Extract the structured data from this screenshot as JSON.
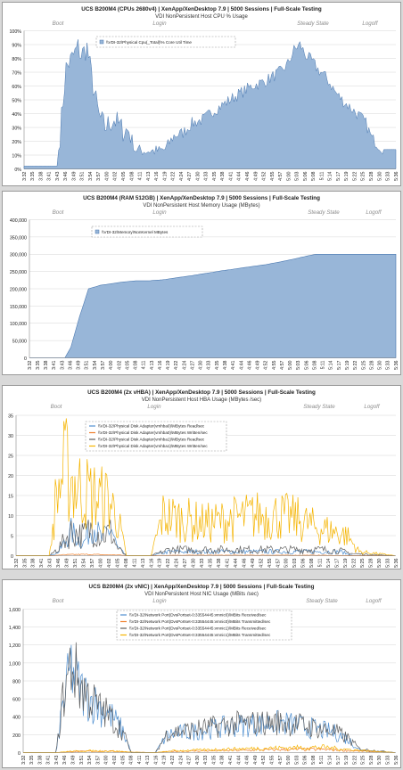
{
  "colors": {
    "area_fill": "#98b6d8",
    "area_stroke": "#4a78b0",
    "grid": "#d6d6d6",
    "blue": "#4f8fd0",
    "orange": "#ef7f2a",
    "gray": "#5f5f5f",
    "gold": "#f5b400"
  },
  "x_ticks": [
    "3:32",
    "3:35",
    "3:38",
    "3:41",
    "3:43",
    "3:46",
    "3:49",
    "3:51",
    "3:54",
    "3:57",
    "4:00",
    "4:02",
    "4:05",
    "4:08",
    "4:11",
    "4:13",
    "4:16",
    "4:19",
    "4:22",
    "4:24",
    "4:27",
    "4:30",
    "4:33",
    "4:35",
    "4:38",
    "4:41",
    "4:44",
    "4:46",
    "4:49",
    "4:52",
    "4:55",
    "4:57",
    "5:00",
    "5:03",
    "5:06",
    "5:08",
    "5:11",
    "5:14",
    "5:17",
    "5:19",
    "5:22",
    "5:25",
    "5:28",
    "5:30",
    "5:33",
    "5:36"
  ],
  "x_ticks_b": [
    "3:32",
    "3:35",
    "3:38",
    "3:41",
    "3:43",
    "3:46",
    "3:49",
    "3:51",
    "3:54",
    "3:57",
    "4:00",
    "4:02",
    "4:05",
    "4:08",
    "4:11",
    "4:13",
    "4:16",
    "4:19",
    "4:22",
    "4:24",
    "4:27",
    "4:30",
    "4:33",
    "4:35",
    "4:38",
    "4:41",
    "4:44",
    "4:46",
    "4:49",
    "4:52",
    "4:55",
    "4:57",
    "5:00",
    "5:03",
    "5:06",
    "5:08",
    "5:11",
    "5:14",
    "5:17",
    "5:19",
    "5:22",
    "5:25",
    "5:28",
    "5:30",
    "5:33",
    "5:36"
  ],
  "chart_data": [
    {
      "type": "area",
      "title": "UCS B200M4 (CPUs 2680v4) | XenApp/XenDesktop 7.9 | 5000 Sessions | Full-Scale Testing",
      "subtitle": "VDI NonPersistent Host CPU % Usage",
      "phases": [
        "Boot",
        "Login",
        "Steady State",
        "Logoff"
      ],
      "y_ticks": [
        "0%",
        "10%",
        "20%",
        "30%",
        "40%",
        "50%",
        "60%",
        "70%",
        "80%",
        "90%",
        "100%"
      ],
      "ylim": [
        0,
        100
      ],
      "legend_position": "top-left",
      "series": [
        {
          "name": "\\\\VDI-32\\Physical Cpu(_Total)\\% Core Util Time"
        }
      ],
      "x_minutes": [
        0,
        11,
        12,
        14,
        16,
        18,
        19,
        21,
        23,
        25,
        27,
        30,
        33,
        35,
        37,
        40,
        42,
        45,
        47,
        50,
        53,
        56,
        60,
        63,
        66,
        70,
        73,
        76,
        80,
        83,
        86,
        88,
        90,
        92,
        94,
        96,
        98,
        100,
        102,
        104,
        106,
        108,
        110,
        112,
        114,
        116,
        118,
        120,
        124
      ],
      "values": [
        2,
        2,
        25,
        73,
        80,
        88,
        82,
        88,
        60,
        38,
        30,
        36,
        28,
        28,
        14,
        13,
        13,
        13,
        14,
        24,
        26,
        33,
        36,
        42,
        46,
        52,
        56,
        60,
        63,
        67,
        71,
        76,
        86,
        90,
        82,
        78,
        72,
        68,
        62,
        55,
        50,
        46,
        42,
        38,
        33,
        22,
        18,
        14,
        14
      ]
    },
    {
      "type": "area",
      "title": "UCS B200M4 (RAM 512GB) | XenApp/XenDesktop 7.9 | 5000 Sessions | Full-Scale Testing",
      "subtitle": "VDI NonPersistent Host Memory Usage (MBytes)",
      "phases": [
        "Boot",
        "Login",
        "Steady State",
        "Logoff"
      ],
      "y_ticks": [
        "0",
        "50,000",
        "100,000",
        "150,000",
        "200,000",
        "250,000",
        "300,000",
        "350,000",
        "400,000"
      ],
      "ylim": [
        0,
        400000
      ],
      "legend_position": "top-left",
      "series": [
        {
          "name": "\\\\VDI-32\\Memory\\NonKernel MBytes"
        }
      ],
      "x_minutes": [
        0,
        12,
        14,
        17,
        20,
        24,
        28,
        32,
        36,
        40,
        45,
        50,
        55,
        60,
        65,
        70,
        75,
        80,
        85,
        90,
        94,
        97,
        100,
        124
      ],
      "values": [
        0,
        0,
        30000,
        120000,
        200000,
        210000,
        215000,
        220000,
        223000,
        223000,
        226000,
        232000,
        238000,
        245000,
        252000,
        258000,
        264000,
        270000,
        278000,
        287000,
        295000,
        300000,
        300000,
        300000
      ]
    },
    {
      "type": "line",
      "title": "UCS B200M4 (2x vHBA) | XenApp/XenDesktop 7.9 | 5000 Sessions | Full-Scale Testing",
      "subtitle": "VDI NonPersistent Host HBA Usage (MBytes /sec)",
      "phases": [
        "Boot",
        "Login",
        "Steady State",
        "Logoff"
      ],
      "y_ticks": [
        "0",
        "5",
        "10",
        "15",
        "20",
        "25",
        "30",
        "35"
      ],
      "ylim": [
        0,
        35
      ],
      "legend_position": "top-left",
      "series": [
        {
          "name": "\\\\VDI-32\\Physical Disk Adapter(vmhba0)\\MBytes Read/sec"
        },
        {
          "name": "\\\\VDI-32\\Physical Disk Adapter(vmhba0)\\MBytes Written/sec"
        },
        {
          "name": "\\\\VDI-32\\Physical Disk Adapter(vmhba1)\\MBytes Read/sec"
        },
        {
          "name": "\\\\VDI-32\\Physical Disk Adapter(vmhba1)\\MBytes Written/sec"
        }
      ],
      "levels": [
        {
          "x_minutes": [
            0,
            11,
            14,
            18,
            22,
            25,
            28,
            31,
            33,
            36,
            44,
            50,
            60,
            70,
            80,
            90,
            100,
            106,
            110,
            124
          ],
          "values": [
            0,
            0,
            1,
            6,
            3,
            8,
            4,
            7,
            2,
            0,
            0,
            1,
            1,
            1,
            1,
            1,
            1,
            1,
            0,
            0
          ]
        },
        {
          "x_minutes": [
            0,
            12,
            15,
            20,
            25,
            30,
            33,
            36,
            44,
            50,
            60,
            70,
            80,
            90,
            100,
            110,
            124
          ],
          "values": [
            0,
            0,
            0.2,
            0.3,
            0.3,
            0.2,
            0.2,
            0,
            0,
            0.1,
            0.1,
            0.1,
            0.1,
            0.1,
            0.1,
            0,
            0
          ]
        },
        {
          "x_minutes": [
            0,
            11,
            14,
            18,
            22,
            25,
            28,
            31,
            33,
            36,
            44,
            50,
            60,
            70,
            80,
            90,
            100,
            106,
            110,
            124
          ],
          "values": [
            0,
            0,
            2,
            6,
            5,
            7,
            5,
            6,
            2,
            0,
            0,
            1.5,
            1.5,
            1.5,
            1.5,
            1.5,
            1.5,
            1.2,
            0.5,
            0
          ]
        },
        {
          "x_minutes": [
            0,
            11,
            13,
            16,
            19,
            22,
            25,
            28,
            30,
            33,
            36,
            44,
            48,
            55,
            62,
            70,
            78,
            86,
            92,
            98,
            104,
            108,
            112,
            124
          ],
          "values": [
            0,
            0,
            14,
            22,
            18,
            16,
            15,
            14,
            14,
            10,
            0,
            0,
            10,
            9,
            8,
            9,
            10,
            10,
            9,
            7,
            6,
            5,
            1,
            0
          ]
        }
      ]
    },
    {
      "type": "line",
      "title": "UCS B200M4 (2x vNIC) | XenApp/XenDesktop 7.9 | 5000 Sessions | Full-Scale Testing",
      "subtitle": "VDI NonPersistent Host NIC Usage (MBits /sec)",
      "phases": [
        "Boot",
        "Login",
        "Steady State",
        "Logoff"
      ],
      "y_ticks": [
        "0",
        "200",
        "400",
        "600",
        "800",
        "1,000",
        "1,200",
        "1,400",
        "1,600"
      ],
      "ylim": [
        0,
        1600
      ],
      "legend_position": "top-center",
      "series": [
        {
          "name": "\\\\VDI-32\\Network Port(DvsPortset-0:33554445:vmnic0)\\MBits Received/sec"
        },
        {
          "name": "\\\\VDI-32\\Network Port(DvsPortset-0:33554445:vmnic0)\\MBits Transmitted/sec"
        },
        {
          "name": "\\\\VDI-32\\Network Port(DvsPortset-0:33554445:vmnic1)\\MBits Received/sec"
        },
        {
          "name": "\\\\VDI-32\\Network Port(DvsPortset-0:33554445:vmnic1)\\MBits Transmitted/sec"
        }
      ],
      "levels": [
        {
          "x_minutes": [
            0,
            11,
            13,
            16,
            19,
            22,
            25,
            28,
            30,
            33,
            36,
            44,
            48,
            55,
            62,
            70,
            78,
            86,
            92,
            98,
            104,
            108,
            112,
            124
          ],
          "values": [
            0,
            0,
            500,
            950,
            700,
            600,
            520,
            450,
            380,
            250,
            0,
            0,
            200,
            230,
            260,
            300,
            320,
            330,
            300,
            260,
            220,
            150,
            30,
            0
          ]
        },
        {
          "x_minutes": [
            0,
            11,
            16,
            22,
            30,
            36,
            44,
            50,
            60,
            70,
            80,
            90,
            100,
            110,
            124
          ],
          "values": [
            0,
            0,
            10,
            15,
            15,
            5,
            0,
            15,
            20,
            25,
            30,
            35,
            35,
            20,
            0
          ]
        },
        {
          "x_minutes": [
            0,
            11,
            13,
            16,
            19,
            22,
            25,
            28,
            30,
            33,
            36,
            44,
            48,
            55,
            62,
            70,
            78,
            86,
            92,
            98,
            104,
            108,
            112,
            124
          ],
          "values": [
            0,
            0,
            550,
            1000,
            750,
            620,
            500,
            430,
            360,
            240,
            0,
            0,
            220,
            250,
            280,
            320,
            330,
            340,
            310,
            270,
            230,
            160,
            40,
            0
          ]
        },
        {
          "x_minutes": [
            0,
            11,
            16,
            22,
            30,
            36,
            44,
            50,
            60,
            70,
            80,
            90,
            100,
            110,
            124
          ],
          "values": [
            0,
            0,
            15,
            20,
            18,
            5,
            0,
            20,
            30,
            40,
            50,
            55,
            60,
            30,
            0
          ]
        }
      ]
    }
  ]
}
